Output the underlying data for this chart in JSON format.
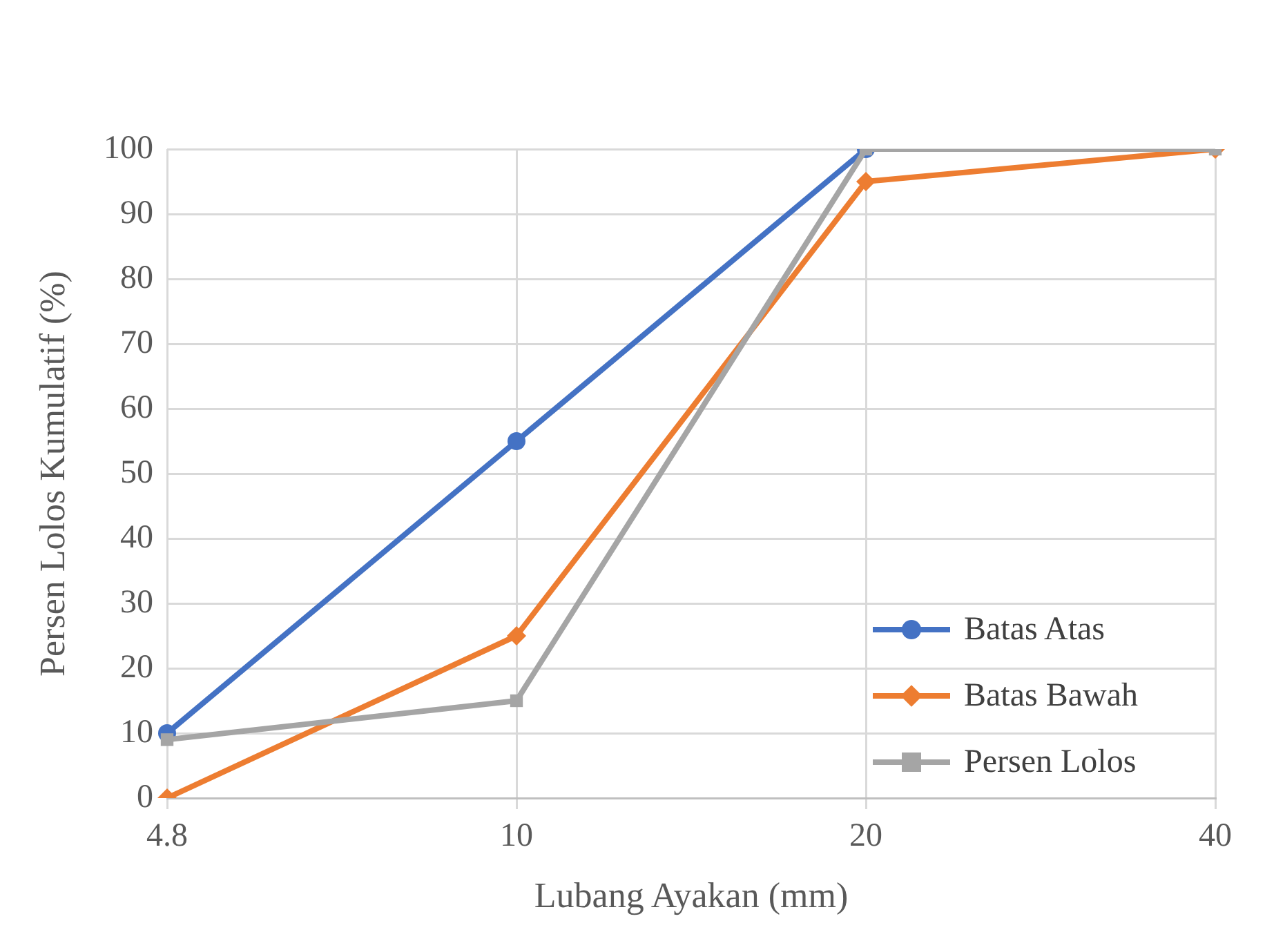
{
  "chart_data": {
    "type": "line",
    "xlabel": "Lubang Ayakan (mm)",
    "ylabel": "Persen Lolos Kumulatif (%)",
    "categories": [
      "4.8",
      "10",
      "20",
      "40"
    ],
    "series": [
      {
        "name": "Batas Atas",
        "color": "#4472c4",
        "marker": "circle",
        "values": [
          10,
          55,
          100,
          null
        ]
      },
      {
        "name": "Batas Bawah",
        "color": "#ed7d31",
        "marker": "diamond",
        "values": [
          0,
          25,
          95,
          100
        ]
      },
      {
        "name": "Persen Lolos",
        "color": "#a5a5a5",
        "marker": "square",
        "values": [
          9,
          15,
          100,
          100
        ]
      }
    ],
    "ylim": [
      0,
      100
    ],
    "yticks": [
      0,
      10,
      20,
      30,
      40,
      50,
      60,
      70,
      80,
      90,
      100
    ],
    "grid": true,
    "legend": "bottom right",
    "line_style": "solid"
  }
}
